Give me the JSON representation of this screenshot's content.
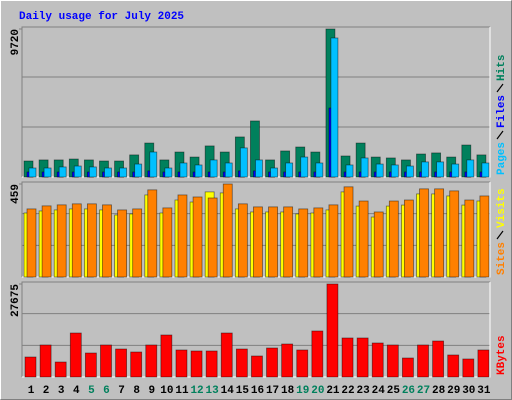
{
  "chart_data": {
    "type": "bar",
    "title": "Daily usage for July 2025",
    "categories": [
      "1",
      "2",
      "3",
      "4",
      "5",
      "6",
      "7",
      "8",
      "9",
      "10",
      "11",
      "12",
      "13",
      "14",
      "15",
      "16",
      "17",
      "18",
      "19",
      "20",
      "21",
      "22",
      "23",
      "24",
      "25",
      "26",
      "27",
      "28",
      "29",
      "30",
      "31"
    ],
    "category_colors": [
      "#000000",
      "#000000",
      "#000000",
      "#000000",
      "#00805c",
      "#00805c",
      "#000000",
      "#000000",
      "#000000",
      "#000000",
      "#000000",
      "#00805c",
      "#00805c",
      "#000000",
      "#000000",
      "#000000",
      "#000000",
      "#000000",
      "#00805c",
      "#00805c",
      "#000000",
      "#000000",
      "#000000",
      "#000000",
      "#000000",
      "#00805c",
      "#00805c",
      "#000000",
      "#000000",
      "#000000",
      "#000000"
    ],
    "panels": [
      {
        "ylim": [
          0,
          9720
        ],
        "yticks": [
          9720
        ],
        "series": [
          {
            "name": "Hits",
            "color": "#00805c",
            "values": [
              1050,
              1120,
              1120,
              1180,
              1120,
              1050,
              1050,
              1450,
              2230,
              1120,
              1640,
              1310,
              2040,
              1640,
              2630,
              3680,
              1120,
              1710,
              1970,
              1640,
              9720,
              1380,
              2230,
              1310,
              1250,
              1120,
              1510,
              1580,
              1310,
              2100,
              1450
            ]
          },
          {
            "name": "Files",
            "color": "#0000ff",
            "values": [
              330,
              330,
              330,
              330,
              330,
              330,
              330,
              330,
              400,
              330,
              330,
              330,
              330,
              330,
              400,
              400,
              330,
              330,
              330,
              330,
              4530,
              330,
              330,
              330,
              330,
              330,
              330,
              330,
              330,
              330,
              330
            ]
          },
          {
            "name": "Pages",
            "color": "#00c0ff",
            "values": [
              590,
              590,
              660,
              720,
              660,
              590,
              590,
              850,
              1640,
              590,
              920,
              790,
              1120,
              920,
              1910,
              1120,
              590,
              920,
              1310,
              920,
              9130,
              790,
              1250,
              850,
              790,
              720,
              990,
              990,
              850,
              1120,
              920
            ]
          }
        ]
      },
      {
        "ylim": [
          0,
          459
        ],
        "yticks": [
          459
        ],
        "series": [
          {
            "name": "Visits",
            "color": "#ffff00",
            "values": [
              316,
              326,
              331,
              336,
              336,
              331,
              306,
              311,
              405,
              316,
              380,
              370,
              420,
              415,
              336,
              321,
              321,
              321,
              311,
              316,
              331,
              420,
              350,
              296,
              350,
              355,
              410,
              410,
              400,
              355,
              375
            ]
          },
          {
            "name": "Sites",
            "color": "#ff8000",
            "values": [
              336,
              351,
              356,
              361,
              361,
              356,
              331,
              336,
              430,
              341,
              405,
              395,
              390,
              459,
              361,
              346,
              346,
              346,
              336,
              341,
              356,
              445,
              375,
              321,
              375,
              380,
              435,
              435,
              425,
              380,
              400
            ]
          }
        ]
      },
      {
        "ylim": [
          0,
          27675
        ],
        "yticks": [
          27675
        ],
        "series": [
          {
            "name": "KBytes",
            "color": "#ff0000",
            "values": [
              5950,
              9520,
              4460,
              13090,
              7140,
              9520,
              8330,
              7440,
              9520,
              12500,
              8040,
              7740,
              7740,
              13090,
              8330,
              6250,
              8630,
              9820,
              8040,
              13690,
              27675,
              11610,
              11610,
              10120,
              9520,
              5650,
              9520,
              10710,
              6550,
              5360,
              8040
            ]
          }
        ]
      }
    ]
  }
}
